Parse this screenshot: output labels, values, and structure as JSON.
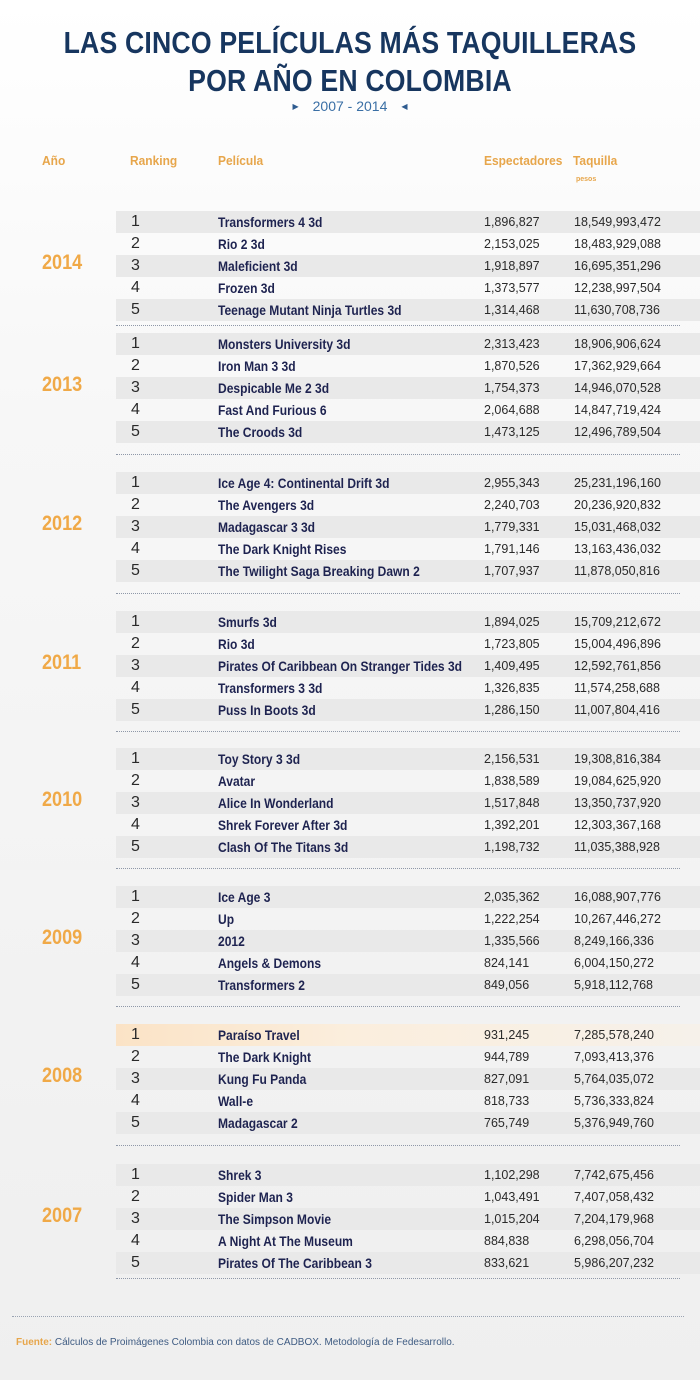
{
  "title_line1": "LAS CINCO PELÍCULAS MÁS TAQUILLERAS",
  "title_line2": "POR AÑO EN COLOMBIA",
  "subtitle": "2007 - 2014",
  "headers": {
    "year": "Año",
    "ranking": "Ranking",
    "movie": "Película",
    "spectators": "Espectadores",
    "boxoffice": "Taquilla",
    "boxoffice_unit": "pesos"
  },
  "footer": {
    "label": "Fuente:",
    "text": " Cálculos de Proimágenes Colombia con datos de CADBOX. Metodología de Fedesarrollo."
  },
  "colors": {
    "title": "#17365f",
    "accent_orange": "#f0a947",
    "movie_text": "#1e2350",
    "highlight_row": "#fbe3c6"
  },
  "chart_data": {
    "type": "table",
    "columns": [
      "Año",
      "Ranking",
      "Película",
      "Espectadores",
      "Taquilla"
    ],
    "years": [
      {
        "year": "2014",
        "rows": [
          {
            "rank": "1",
            "movie": "Transformers 4  3d",
            "spectators": "1,896,827",
            "boxoffice": "18,549,993,472"
          },
          {
            "rank": "2",
            "movie": "Rio 2 3d",
            "spectators": "2,153,025",
            "boxoffice": "18,483,929,088"
          },
          {
            "rank": "3",
            "movie": "Maleficient  3d",
            "spectators": "1,918,897",
            "boxoffice": "16,695,351,296"
          },
          {
            "rank": "4",
            "movie": "Frozen  3d",
            "spectators": "1,373,577",
            "boxoffice": "12,238,997,504"
          },
          {
            "rank": "5",
            "movie": "Teenage Mutant Ninja Turtles  3d",
            "spectators": "1,314,468",
            "boxoffice": "11,630,708,736"
          }
        ]
      },
      {
        "year": "2013",
        "rows": [
          {
            "rank": "1",
            "movie": "Monsters University 3d",
            "spectators": "2,313,423",
            "boxoffice": "18,906,906,624"
          },
          {
            "rank": "2",
            "movie": "Iron Man 3 3d",
            "spectators": "1,870,526",
            "boxoffice": "17,362,929,664"
          },
          {
            "rank": "3",
            "movie": "Despicable Me 2 3d",
            "spectators": "1,754,373",
            "boxoffice": "14,946,070,528"
          },
          {
            "rank": "4",
            "movie": "Fast And Furious 6",
            "spectators": "2,064,688",
            "boxoffice": "14,847,719,424"
          },
          {
            "rank": "5",
            "movie": "The Croods 3d",
            "spectators": "1,473,125",
            "boxoffice": "12,496,789,504"
          }
        ]
      },
      {
        "year": "2012",
        "rows": [
          {
            "rank": "1",
            "movie": "Ice Age 4: Continental Drift 3d",
            "spectators": "2,955,343",
            "boxoffice": "25,231,196,160"
          },
          {
            "rank": "2",
            "movie": "The Avengers 3d",
            "spectators": "2,240,703",
            "boxoffice": "20,236,920,832"
          },
          {
            "rank": "3",
            "movie": "Madagascar 3 3d",
            "spectators": "1,779,331",
            "boxoffice": "15,031,468,032"
          },
          {
            "rank": "4",
            "movie": "The Dark Knight Rises",
            "spectators": "1,791,146",
            "boxoffice": "13,163,436,032"
          },
          {
            "rank": "5",
            "movie": "The Twilight Saga Breaking Dawn 2",
            "spectators": "1,707,937",
            "boxoffice": "11,878,050,816"
          }
        ]
      },
      {
        "year": "2011",
        "rows": [
          {
            "rank": "1",
            "movie": "Smurfs  3d",
            "spectators": "1,894,025",
            "boxoffice": "15,709,212,672"
          },
          {
            "rank": "2",
            "movie": "Rio  3d",
            "spectators": "1,723,805",
            "boxoffice": "15,004,496,896"
          },
          {
            "rank": "3",
            "movie": "Pirates Of Caribbean On Stranger Tides  3d",
            "spectators": "1,409,495",
            "boxoffice": "12,592,761,856"
          },
          {
            "rank": "4",
            "movie": "Transformers 3  3d",
            "spectators": "1,326,835",
            "boxoffice": "11,574,258,688"
          },
          {
            "rank": "5",
            "movie": "Puss In Boots  3d",
            "spectators": "1,286,150",
            "boxoffice": "11,007,804,416"
          }
        ]
      },
      {
        "year": "2010",
        "rows": [
          {
            "rank": "1",
            "movie": "Toy Story 3  3d",
            "spectators": "2,156,531",
            "boxoffice": "19,308,816,384"
          },
          {
            "rank": "2",
            "movie": "Avatar",
            "spectators": "1,838,589",
            "boxoffice": "19,084,625,920"
          },
          {
            "rank": "3",
            "movie": "Alice In Wonderland",
            "spectators": "1,517,848",
            "boxoffice": "13,350,737,920"
          },
          {
            "rank": "4",
            "movie": "Shrek Forever After  3d",
            "spectators": "1,392,201",
            "boxoffice": "12,303,367,168"
          },
          {
            "rank": "5",
            "movie": "Clash Of The Titans 3d",
            "spectators": "1,198,732",
            "boxoffice": "11,035,388,928"
          }
        ]
      },
      {
        "year": "2009",
        "rows": [
          {
            "rank": "1",
            "movie": "Ice Age 3",
            "spectators": "2,035,362",
            "boxoffice": "16,088,907,776"
          },
          {
            "rank": "2",
            "movie": "Up",
            "spectators": "1,222,254",
            "boxoffice": "10,267,446,272"
          },
          {
            "rank": "3",
            "movie": "2012",
            "spectators": "1,335,566",
            "boxoffice": "8,249,166,336"
          },
          {
            "rank": "4",
            "movie": "Angels & Demons",
            "spectators": "824,141",
            "boxoffice": "6,004,150,272"
          },
          {
            "rank": "5",
            "movie": "Transformers 2",
            "spectators": "849,056",
            "boxoffice": "5,918,112,768"
          }
        ]
      },
      {
        "year": "2008",
        "rows": [
          {
            "rank": "1",
            "movie": "Paraíso Travel",
            "spectators": "931,245",
            "boxoffice": "7,285,578,240",
            "highlight": true
          },
          {
            "rank": "2",
            "movie": "The Dark Knight",
            "spectators": "944,789",
            "boxoffice": "7,093,413,376"
          },
          {
            "rank": "3",
            "movie": "Kung Fu Panda",
            "spectators": "827,091",
            "boxoffice": "5,764,035,072"
          },
          {
            "rank": "4",
            "movie": "Wall-e",
            "spectators": "818,733",
            "boxoffice": "5,736,333,824"
          },
          {
            "rank": "5",
            "movie": "Madagascar 2",
            "spectators": "765,749",
            "boxoffice": "5,376,949,760"
          }
        ]
      },
      {
        "year": "2007",
        "rows": [
          {
            "rank": "1",
            "movie": "Shrek 3",
            "spectators": "1,102,298",
            "boxoffice": "7,742,675,456"
          },
          {
            "rank": "2",
            "movie": "Spider Man 3",
            "spectators": "1,043,491",
            "boxoffice": "7,407,058,432"
          },
          {
            "rank": "3",
            "movie": "The Simpson Movie",
            "spectators": "1,015,204",
            "boxoffice": "7,204,179,968"
          },
          {
            "rank": "4",
            "movie": "A Night At The Museum",
            "spectators": "884,838",
            "boxoffice": "6,298,056,704"
          },
          {
            "rank": "5",
            "movie": "Pirates Of The Caribbean 3",
            "spectators": "833,621",
            "boxoffice": "5,986,207,232"
          }
        ]
      }
    ]
  }
}
